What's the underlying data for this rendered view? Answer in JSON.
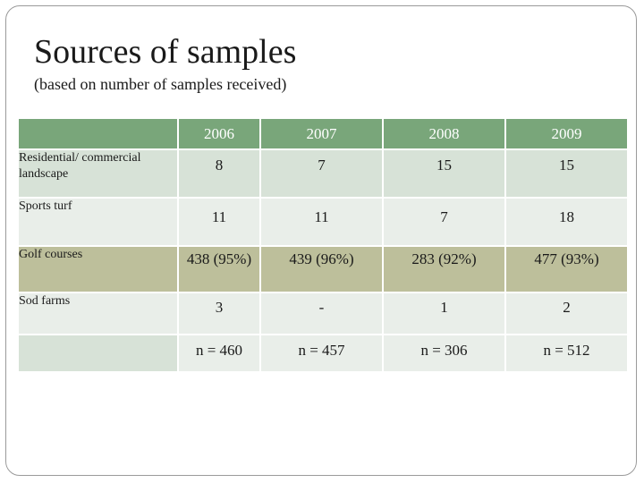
{
  "slide": {
    "title": "Sources of samples",
    "subtitle": "(based on number of samples received)"
  },
  "table": {
    "headers": [
      "",
      "2006",
      "2007",
      "2008",
      "2009"
    ],
    "rows": [
      {
        "label": "Residential/ commercial landscape",
        "values": [
          "8",
          "7",
          "15",
          "15"
        ]
      },
      {
        "label": "Sports turf",
        "values": [
          "11",
          "11",
          "7",
          "18"
        ]
      },
      {
        "label": "Golf courses",
        "values": [
          "438 (95%)",
          "439 (96%)",
          "283 (92%)",
          "477 (93%)"
        ]
      },
      {
        "label": "Sod farms",
        "values": [
          "3",
          "-",
          "1",
          "2"
        ]
      }
    ],
    "totals": [
      "n = 460",
      "n = 457",
      "n = 306",
      "n = 512"
    ],
    "colors": {
      "header": "#79a67a",
      "row_light": "#d7e2d7",
      "row_lighter": "#e9eee9",
      "row_highlight": "#bdbf9b"
    }
  }
}
